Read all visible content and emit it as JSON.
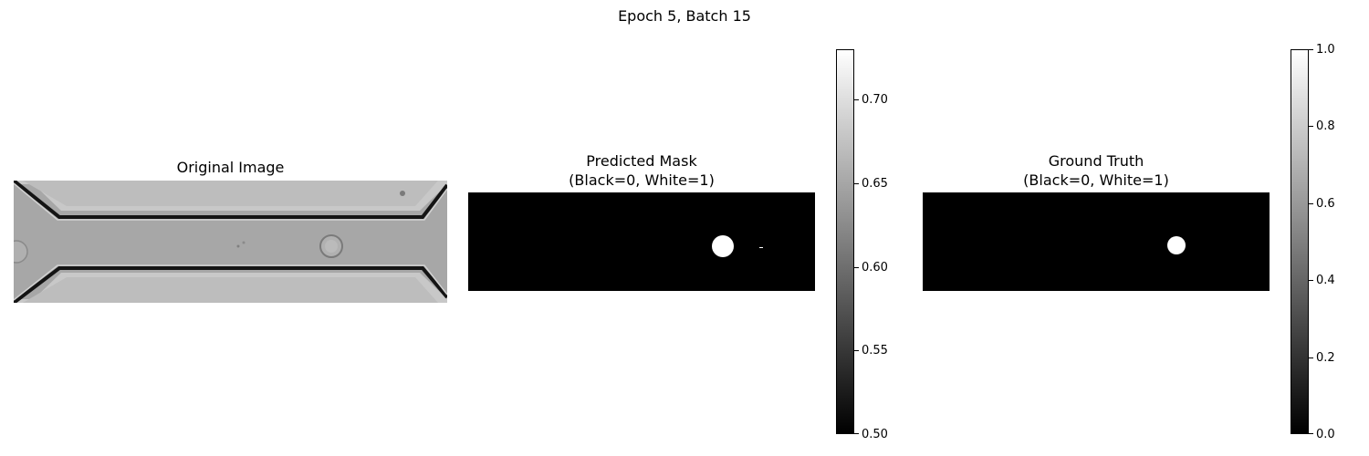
{
  "figure": {
    "suptitle": "Epoch 5, Batch 15"
  },
  "panels": [
    {
      "title": "Original Image"
    },
    {
      "title": "Predicted Mask\n(Black=0, White=1)"
    },
    {
      "title": "Ground Truth\n(Black=0, White=1)"
    }
  ],
  "colorbars": {
    "predicted": {
      "range": [
        0.5,
        0.73
      ],
      "ticks": [
        "0.50",
        "0.55",
        "0.60",
        "0.65",
        "0.70"
      ],
      "tick_values": [
        0.5,
        0.55,
        0.6,
        0.65,
        0.7
      ]
    },
    "ground_truth": {
      "range": [
        0.0,
        1.0
      ],
      "ticks": [
        "0.0",
        "0.2",
        "0.4",
        "0.6",
        "0.8",
        "1.0"
      ],
      "tick_values": [
        0.0,
        0.2,
        0.4,
        0.6,
        0.8,
        1.0
      ]
    }
  },
  "colors": {
    "mask_background": "#000000",
    "mask_foreground": "#ffffff",
    "channel_fill": "#a9a9a9",
    "channel_edge": "#111111"
  }
}
